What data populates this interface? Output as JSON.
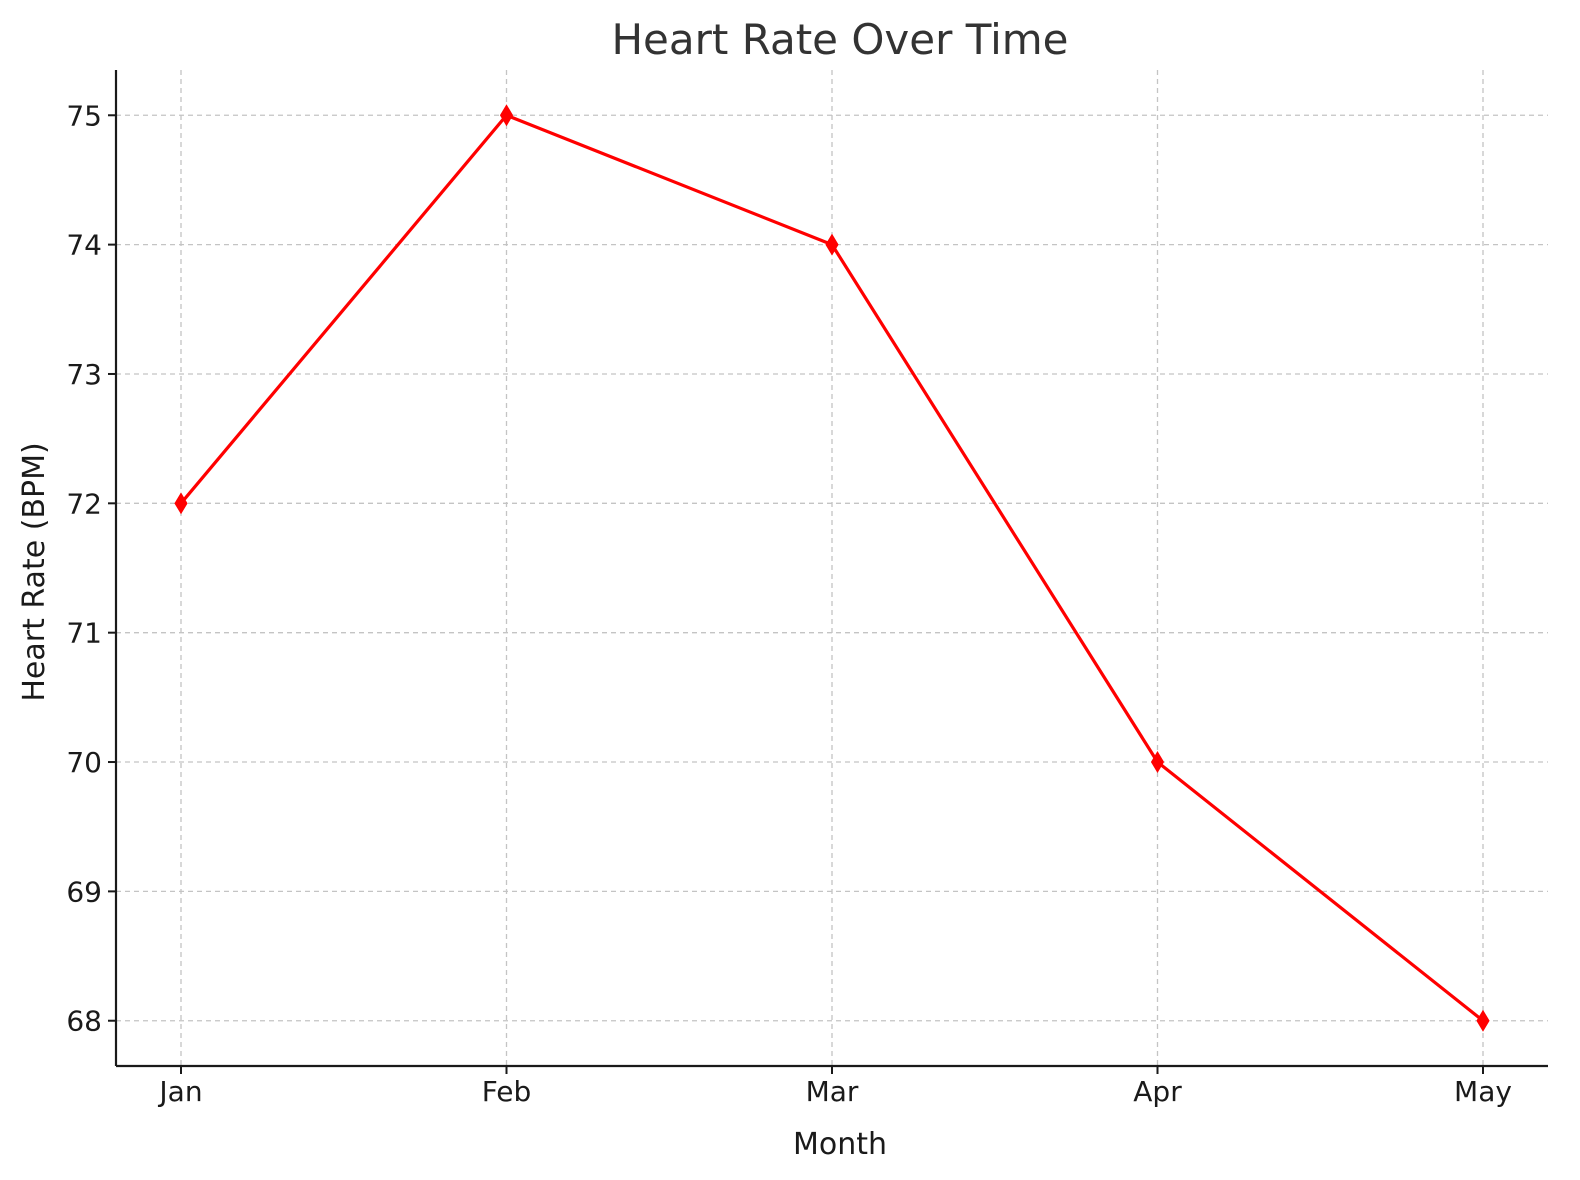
{
  "chart_data": {
    "type": "line",
    "title": "Heart Rate Over Time",
    "xlabel": "Month",
    "ylabel": "Heart Rate (BPM)",
    "categories": [
      "Jan",
      "Feb",
      "Mar",
      "Apr",
      "May"
    ],
    "series": [
      {
        "values": [
          72,
          75,
          74,
          70,
          68
        ],
        "color": "#ff0000",
        "marker": "diamond"
      }
    ],
    "ylim": [
      67.65,
      75.35
    ],
    "yticks": [
      68,
      69,
      70,
      71,
      72,
      73,
      74,
      75
    ],
    "grid": true
  }
}
